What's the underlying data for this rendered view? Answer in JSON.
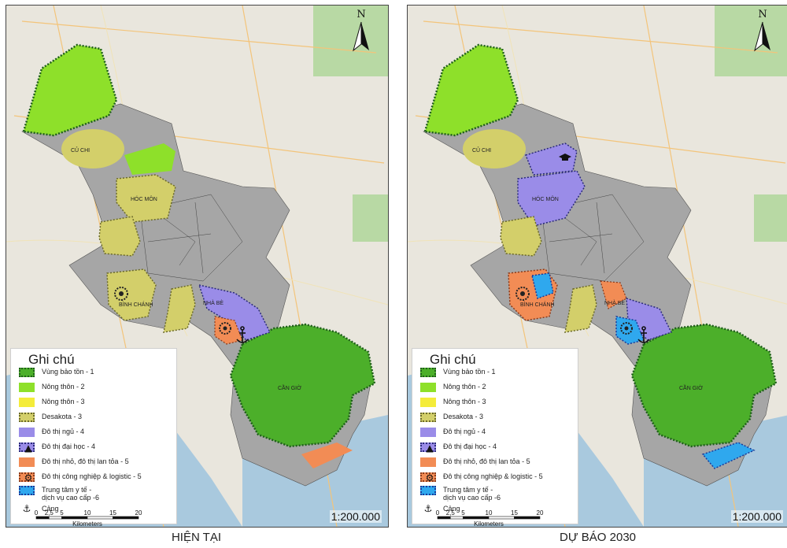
{
  "panels": [
    {
      "caption": "HIỆN TẠI",
      "scale_ratio": "1:200.000",
      "north_label": "N",
      "legend_title": "Ghi chú",
      "places": [
        "CỦ CHI",
        "HÓC MÔN",
        "BÌNH CHÁNH",
        "NHÀ BÈ",
        "CẦN GIỜ"
      ]
    },
    {
      "caption": "DỰ BÁO 2030",
      "scale_ratio": "1:200.000",
      "north_label": "N",
      "legend_title": "Ghi chú",
      "places": [
        "CỦ CHI",
        "HÓC MÔN",
        "BÌNH CHÁNH",
        "NHÀ BÈ",
        "CẦN GIỜ"
      ]
    }
  ],
  "legend": [
    {
      "label": "Vùng bảo tồn - 1",
      "color": "#4caf2a",
      "border": "#1f5f1a",
      "symbol": ""
    },
    {
      "label": "Nông thôn - 2",
      "color": "#8ee02a",
      "border": "#8ee02a",
      "symbol": ""
    },
    {
      "label": "Nông thôn - 3",
      "color": "#f4ec3a",
      "border": "#f4ec3a",
      "symbol": ""
    },
    {
      "label": "Desakota - 3",
      "color": "#d3cf6a",
      "border": "#6b6a2a",
      "symbol": ""
    },
    {
      "label": "Đô thị ngủ - 4",
      "color": "#9a8ce8",
      "border": "#9a8ce8",
      "symbol": ""
    },
    {
      "label": "Đô thị đại học - 4",
      "color": "#9a8ce8",
      "border": "#2a2a7a",
      "symbol": "graduation-cap-icon"
    },
    {
      "label": "Đô thị nhỏ, đô thị lan tỏa - 5",
      "color": "#f28c55",
      "border": "#f28c55",
      "symbol": ""
    },
    {
      "label": "Đô thị công nghiệp & logistic - 5",
      "color": "#f28c55",
      "border": "#8a3a1a",
      "symbol": "gear-icon"
    },
    {
      "label": "Trung tâm y tế -\ndịch vụ cao cấp -6",
      "color": "#2fa8ee",
      "border": "#1a3a9a",
      "symbol": ""
    },
    {
      "label": "Cảng",
      "color": "",
      "border": "",
      "symbol": "anchor-icon"
    }
  ],
  "scalebar": {
    "ticks": [
      "0",
      "2,5",
      "5",
      "10",
      "15",
      "20"
    ],
    "tick_values": [
      0,
      2.5,
      5,
      10,
      15,
      20
    ],
    "unit": "Kilometers"
  },
  "colors": {
    "base_map": "#e9e6dd",
    "water": "#a9c9de",
    "district_gray": "#a6a6a6",
    "forest": "#b8d9a4",
    "roads": "#f3c47a"
  }
}
